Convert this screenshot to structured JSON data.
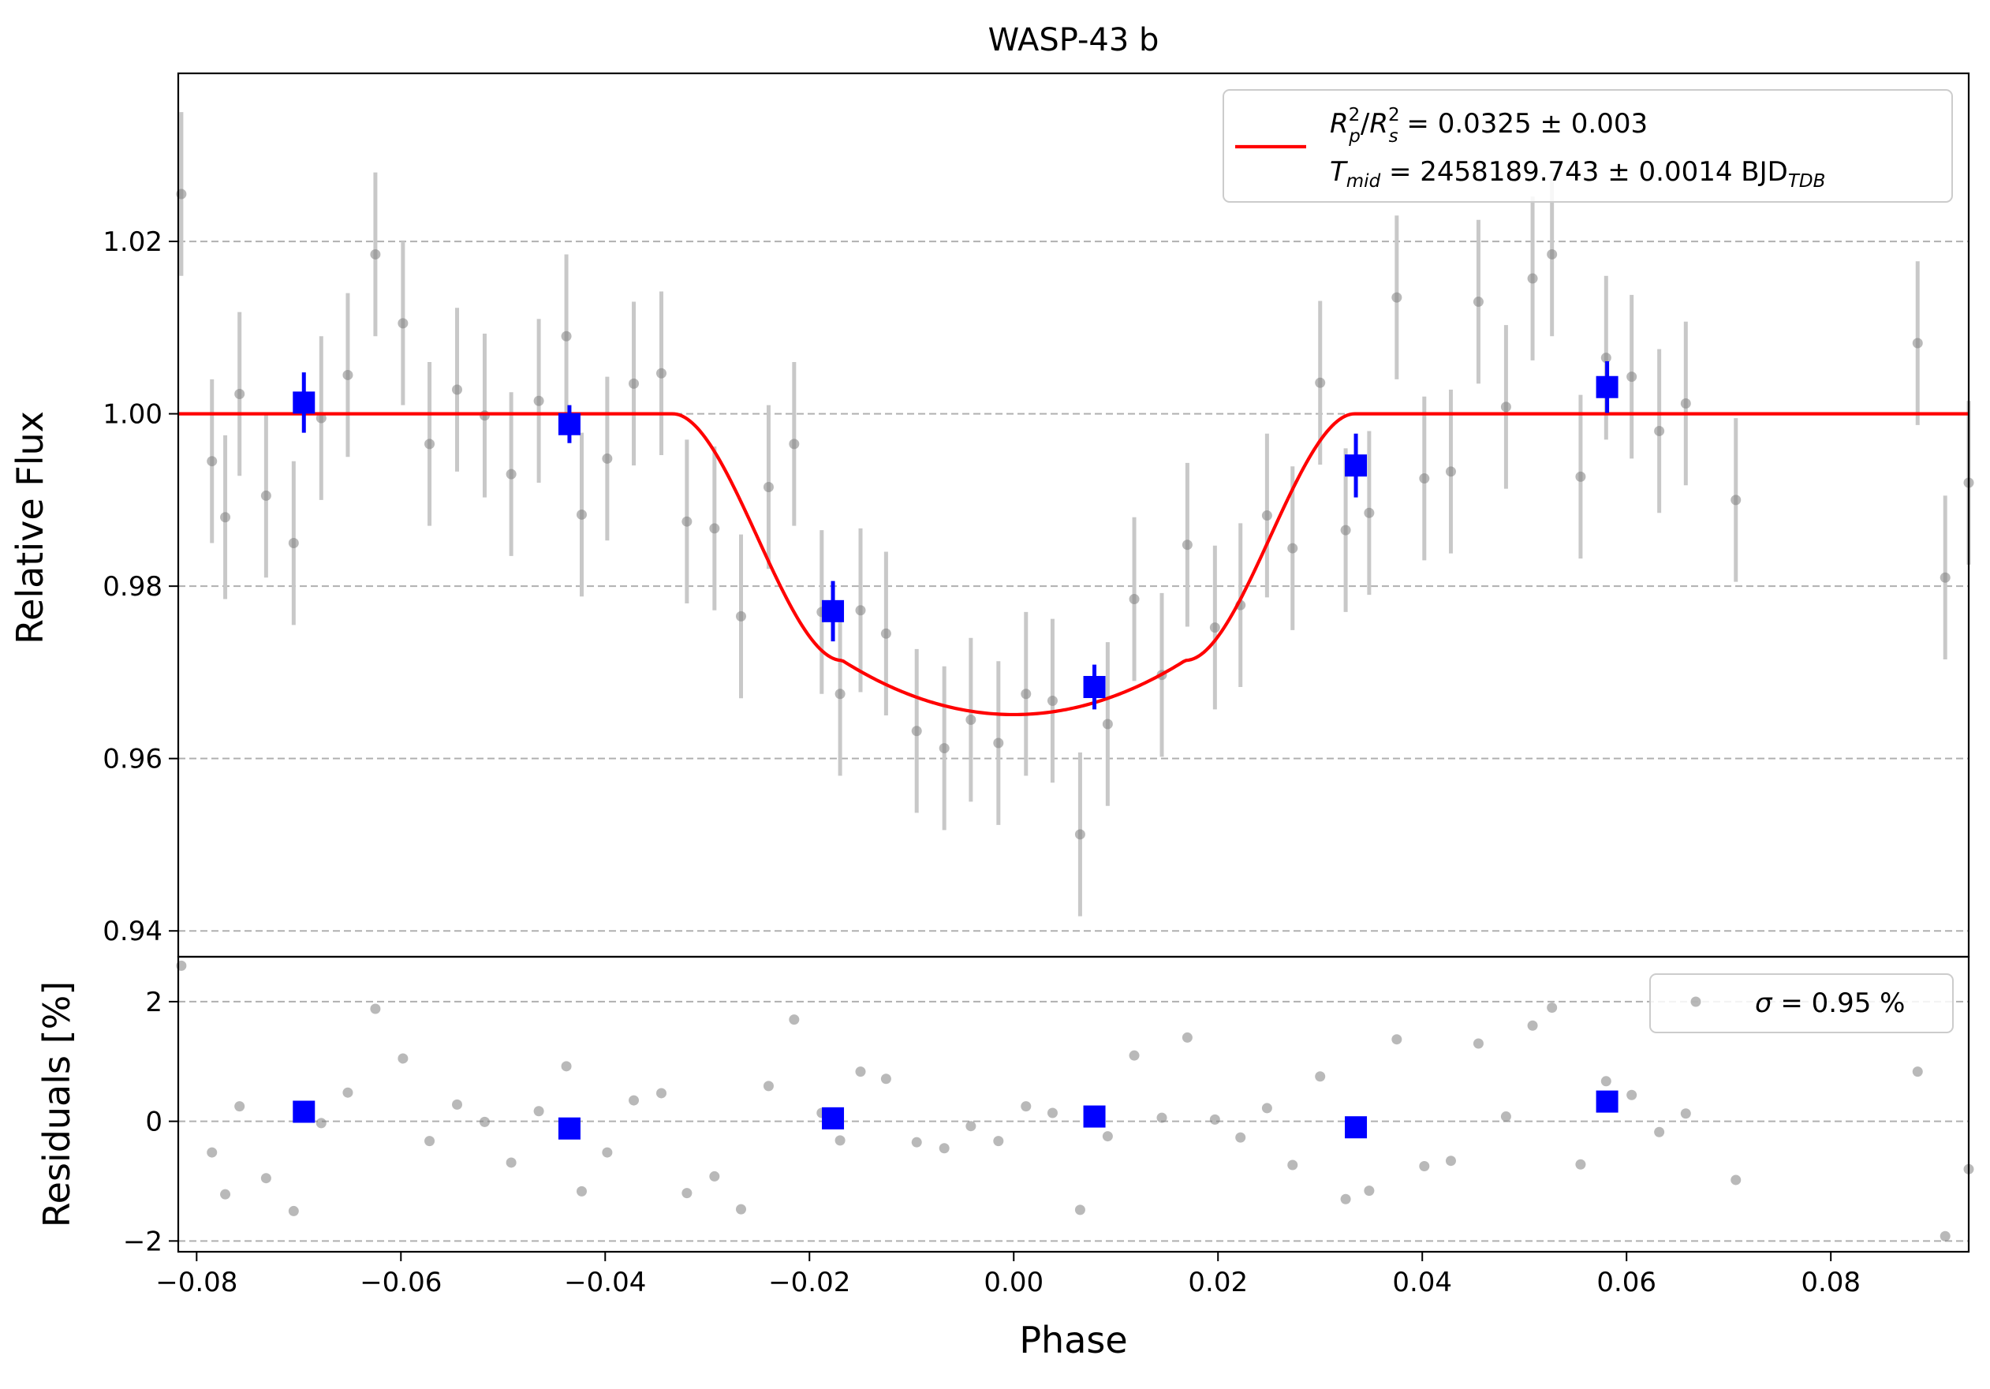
{
  "chart_data": {
    "type": "scatter",
    "title": "WASP-43 b",
    "xlabel": "Phase",
    "x_ticks": [
      "−0.08",
      "−0.06",
      "−0.04",
      "−0.02",
      "0.00",
      "0.02",
      "0.04",
      "0.06",
      "0.08"
    ],
    "x_tick_values": [
      -0.08,
      -0.06,
      -0.04,
      -0.02,
      0.0,
      0.02,
      0.04,
      0.06,
      0.08
    ],
    "xlim": [
      -0.0818,
      0.0935
    ],
    "grid": "horizontal dashed",
    "colors": {
      "raw": "#808080",
      "errorbar": "#c8c8c8",
      "binned": "#0000ff",
      "model": "#ff0000",
      "grid": "#b0b0b0"
    },
    "top_panel": {
      "ylabel": "Relative Flux",
      "ylim": [
        0.937,
        1.0395
      ],
      "y_ticks": [
        "0.94",
        "0.96",
        "0.98",
        "1.00",
        "1.02"
      ],
      "y_tick_values": [
        0.94,
        0.96,
        0.98,
        1.0,
        1.02
      ],
      "legend": {
        "position": "upper right",
        "line1": {
          "a": "R",
          "a_sub": "p",
          "a_sup": "2",
          "sep": "/",
          "b": "R",
          "b_sub": "s",
          "b_sup": "2",
          "rest": " = 0.0325 ± 0.003"
        },
        "line2": {
          "a": "T",
          "a_sub": "mid",
          "rest": " = 2458189.743 ± 0.0014 BJD",
          "unit_sub": "TDB"
        }
      },
      "model": {
        "name": "transit model",
        "depth": 0.0349,
        "t1": -0.0334,
        "t2": -0.0168,
        "t3": 0.0168,
        "t4": 0.0334,
        "baseline": 1.0
      },
      "raw": {
        "x": [
          -0.0815,
          -0.0785,
          -0.0772,
          -0.0758,
          -0.0732,
          -0.0705,
          -0.0678,
          -0.0652,
          -0.0625,
          -0.0598,
          -0.0572,
          -0.0545,
          -0.0518,
          -0.0492,
          -0.0465,
          -0.0438,
          -0.0423,
          -0.0398,
          -0.0372,
          -0.0345,
          -0.032,
          -0.0293,
          -0.0267,
          -0.024,
          -0.0215,
          -0.0188,
          -0.017,
          -0.015,
          -0.0125,
          -0.0095,
          -0.0068,
          -0.0042,
          -0.0015,
          0.0012,
          0.0038,
          0.0065,
          0.0092,
          0.0118,
          0.0145,
          0.017,
          0.0197,
          0.0222,
          0.0248,
          0.0273,
          0.03,
          0.0325,
          0.0348,
          0.0375,
          0.0402,
          0.0428,
          0.0455,
          0.0482,
          0.0508,
          0.0527,
          0.0555,
          0.058,
          0.0605,
          0.0632,
          0.0658,
          0.0707,
          0.0885,
          0.0912,
          0.0935
        ],
        "y": [
          1.0255,
          0.9945,
          0.988,
          1.0023,
          0.9905,
          0.985,
          0.9995,
          1.0045,
          1.0185,
          1.0105,
          0.9965,
          1.0028,
          0.9998,
          0.993,
          1.0015,
          1.009,
          0.9883,
          0.9948,
          1.0035,
          1.0047,
          0.9875,
          0.9867,
          0.9765,
          0.9915,
          0.9965,
          0.977,
          0.9675,
          0.9772,
          0.9745,
          0.9632,
          0.9612,
          0.9645,
          0.9618,
          0.9675,
          0.9667,
          0.9512,
          0.964,
          0.9785,
          0.9697,
          0.9848,
          0.9752,
          0.9778,
          0.9882,
          0.9844,
          1.0036,
          0.9865,
          0.9885,
          1.0135,
          0.9925,
          0.9933,
          1.013,
          1.0008,
          1.0157,
          1.0185,
          0.9927,
          1.0065,
          1.0043,
          0.998,
          1.0012,
          0.99,
          1.0082,
          0.981,
          0.992
        ],
        "yerr": 0.0095
      },
      "binned": {
        "x": [
          -0.0695,
          -0.0435,
          -0.0177,
          0.0079,
          0.0335,
          0.0581
        ],
        "y": [
          1.0013,
          0.9988,
          0.9771,
          0.9683,
          0.994,
          1.0031
        ],
        "yerr": [
          0.0035,
          0.0022,
          0.0035,
          0.0026,
          0.0037,
          0.003
        ]
      }
    },
    "bottom_panel": {
      "ylabel": "Residuals [%]",
      "ylim": [
        -2.18,
        2.75
      ],
      "y_ticks": [
        "−2",
        "0",
        "2"
      ],
      "y_tick_values": [
        -2,
        0,
        2
      ],
      "legend": {
        "position": "upper right",
        "label": " = 0.95 %",
        "symbol": "σ"
      },
      "raw_y": [
        2.6,
        -0.52,
        -1.22,
        0.25,
        -0.95,
        -1.5,
        -0.03,
        0.48,
        1.88,
        1.05,
        -0.33,
        0.28,
        -0.01,
        -0.69,
        0.17,
        0.92,
        -1.17,
        -0.52,
        0.35,
        0.47,
        -1.2,
        -0.92,
        -1.47,
        0.59,
        1.7,
        0.14,
        -0.32,
        0.83,
        0.71,
        -0.35,
        -0.45,
        -0.08,
        -0.33,
        0.25,
        0.14,
        -1.48,
        -0.25,
        1.1,
        0.06,
        1.4,
        0.03,
        -0.27,
        0.22,
        -0.73,
        0.75,
        -1.3,
        -1.16,
        1.37,
        -0.75,
        -0.66,
        1.3,
        0.08,
        1.6,
        1.9,
        -0.72,
        0.67,
        0.44,
        -0.18,
        0.13,
        -0.98,
        0.83,
        -1.92,
        -0.8
      ],
      "binned_y": [
        0.16,
        -0.12,
        0.05,
        0.08,
        -0.1,
        0.33
      ]
    }
  }
}
